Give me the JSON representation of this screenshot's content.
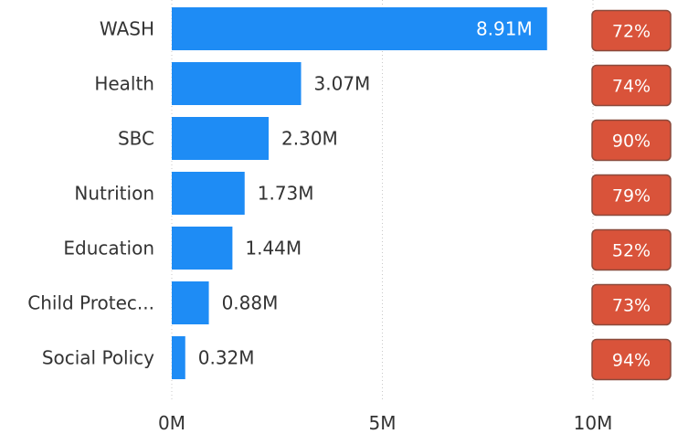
{
  "chart_data": {
    "type": "bar",
    "orientation": "horizontal",
    "title": "",
    "xlabel": "",
    "ylabel": "",
    "categories": [
      "WASH",
      "Health",
      "SBC",
      "Nutrition",
      "Education",
      "Child Protec...",
      "Social Policy"
    ],
    "values": [
      8.91,
      3.07,
      2.3,
      1.73,
      1.44,
      0.88,
      0.32
    ],
    "value_labels": [
      "8.91M",
      "3.07M",
      "2.30M",
      "1.73M",
      "1.44M",
      "0.88M",
      "0.32M"
    ],
    "percent_badges": [
      "72%",
      "74%",
      "90%",
      "79%",
      "52%",
      "73%",
      "94%"
    ],
    "xlim": [
      0,
      10
    ],
    "x_ticks": [
      0,
      5,
      10
    ],
    "x_tick_labels": [
      "0M",
      "5M",
      "10M"
    ],
    "grid": "vertical dotted",
    "colors": {
      "bar": "#1e8cf5",
      "badge_fill": "#d9533a",
      "badge_border": "#8a4a3c",
      "badge_text": "#ffffff",
      "label_inside": "#ffffff",
      "label_outside": "#333333",
      "grid": "#c8c8c8"
    }
  }
}
